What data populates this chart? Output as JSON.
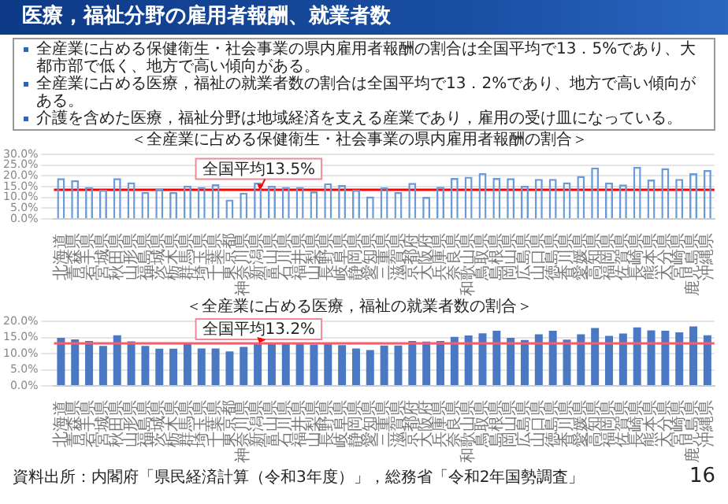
{
  "chart_data": [
    {
      "type": "other",
      "title": "医療，福祉分野の雇用者報酬、就業者数",
      "annotations": [
        "全産業に占める保健衛生・社会事業の県内雇用者報酬の割合は全国平均で13．5%であり、大都市部で低く、地方で高い傾向がある。",
        "全産業に占める医療，福祉の就業者数の割合は全国平均で13．2%であり、地方で高い傾向がある。",
        "介護を含めた医療，福祉分野は地域経済を支える産業であり，雇用の受け皿になっている。"
      ]
    },
    {
      "type": "bar",
      "title": "＜全産業に占める保健衛生・社会事業の県内雇用者報酬の割合＞",
      "categories": [
        "北海道",
        "青森県",
        "岩手県",
        "宮城県",
        "秋田県",
        "山形県",
        "福島県",
        "茨城県",
        "栃木県",
        "群馬県",
        "埼玉県",
        "千葉県",
        "東京都",
        "神奈川県",
        "新潟県",
        "富山県",
        "石川県",
        "福井県",
        "山梨県",
        "長野県",
        "岐阜県",
        "静岡県",
        "愛知県",
        "三重県",
        "滋賀県",
        "京都府",
        "大阪府",
        "兵庫県",
        "奈良県",
        "和歌山県",
        "鳥取県",
        "島根県",
        "岡山県",
        "広島県",
        "山口県",
        "徳島県",
        "香川県",
        "愛媛県",
        "高知県",
        "福岡県",
        "佐賀県",
        "長崎県",
        "熊本県",
        "大分県",
        "宮崎県",
        "鹿児島県",
        "沖縄県"
      ],
      "values": [
        18.9,
        18.0,
        14.8,
        13.5,
        18.9,
        17.0,
        12.5,
        13.9,
        12.5,
        15.5,
        14.8,
        16.1,
        9.0,
        12.2,
        16.9,
        15.4,
        14.8,
        14.8,
        12.8,
        16.6,
        15.7,
        13.5,
        10.4,
        14.6,
        12.5,
        16.7,
        10.2,
        14.9,
        19.0,
        19.6,
        21.3,
        19.0,
        18.9,
        15.4,
        18.6,
        18.6,
        17.0,
        19.9,
        23.9,
        16.9,
        16.0,
        24.2,
        18.3,
        23.6,
        18.6,
        21.2,
        22.7
      ],
      "color": "#6a9ad8",
      "ylim": [
        0,
        30
      ],
      "yticks": [
        {
          "value": 0,
          "label": "0.0%"
        },
        {
          "value": 5,
          "label": "5.0%"
        },
        {
          "value": 10,
          "label": "10.0%"
        },
        {
          "value": 15,
          "label": "15.0%"
        },
        {
          "value": 20,
          "label": "20.0%"
        },
        {
          "value": 25,
          "label": "25.0%"
        },
        {
          "value": 30,
          "label": "30.0%"
        }
      ],
      "grid": "y",
      "legend": false,
      "ref_lines": [
        {
          "axis": "y",
          "value": 13.5,
          "label": "全国平均13.5%",
          "color": "#ff0000"
        }
      ]
    },
    {
      "type": "bar",
      "title": "＜全産業に占める医療，福祉の就業者数の割合＞",
      "categories": [
        "北海道",
        "青森県",
        "岩手県",
        "宮城県",
        "秋田県",
        "山形県",
        "福島県",
        "茨城県",
        "栃木県",
        "群馬県",
        "埼玉県",
        "千葉県",
        "東京都",
        "神奈川県",
        "新潟県",
        "富山県",
        "石川県",
        "福井県",
        "山梨県",
        "長野県",
        "岐阜県",
        "静岡県",
        "愛知県",
        "三重県",
        "滋賀県",
        "京都府",
        "大阪府",
        "兵庫県",
        "奈良県",
        "和歌山県",
        "鳥取県",
        "島根県",
        "岡山県",
        "広島県",
        "山口県",
        "徳島県",
        "香川県",
        "愛媛県",
        "高知県",
        "福岡県",
        "佐賀県",
        "長崎県",
        "熊本県",
        "大分県",
        "宮崎県",
        "鹿児島県",
        "沖縄県"
      ],
      "values": [
        14.9,
        14.4,
        13.9,
        12.4,
        15.7,
        13.8,
        12.4,
        11.5,
        11.5,
        13.3,
        11.6,
        11.6,
        10.7,
        12.1,
        13.4,
        13.0,
        13.3,
        13.3,
        12.8,
        13.4,
        12.6,
        11.6,
        11.1,
        12.5,
        12.5,
        13.9,
        13.7,
        13.9,
        15.2,
        15.6,
        16.3,
        17.1,
        14.9,
        14.2,
        16.0,
        17.1,
        14.3,
        16.0,
        17.9,
        15.5,
        16.2,
        18.1,
        17.2,
        17.1,
        16.6,
        18.4,
        15.7
      ],
      "color": "#4a78c2",
      "ylim": [
        0,
        20
      ],
      "yticks": [
        {
          "value": 0,
          "label": "0.0%"
        },
        {
          "value": 5,
          "label": "5.0%"
        },
        {
          "value": 10,
          "label": "10.0%"
        },
        {
          "value": 15,
          "label": "15.0%"
        },
        {
          "value": 20,
          "label": "20.0%"
        }
      ],
      "grid": "y",
      "legend": false,
      "ref_lines": [
        {
          "axis": "y",
          "value": 13.2,
          "label": "全国平均13.2%",
          "color": "#ff5a6a"
        }
      ]
    },
    {
      "type": "other",
      "annotations": [
        "資料出所：内閣府「県民経済計算（令和3年度）」，総務省「令和2年国勢調査」",
        "16"
      ]
    }
  ]
}
